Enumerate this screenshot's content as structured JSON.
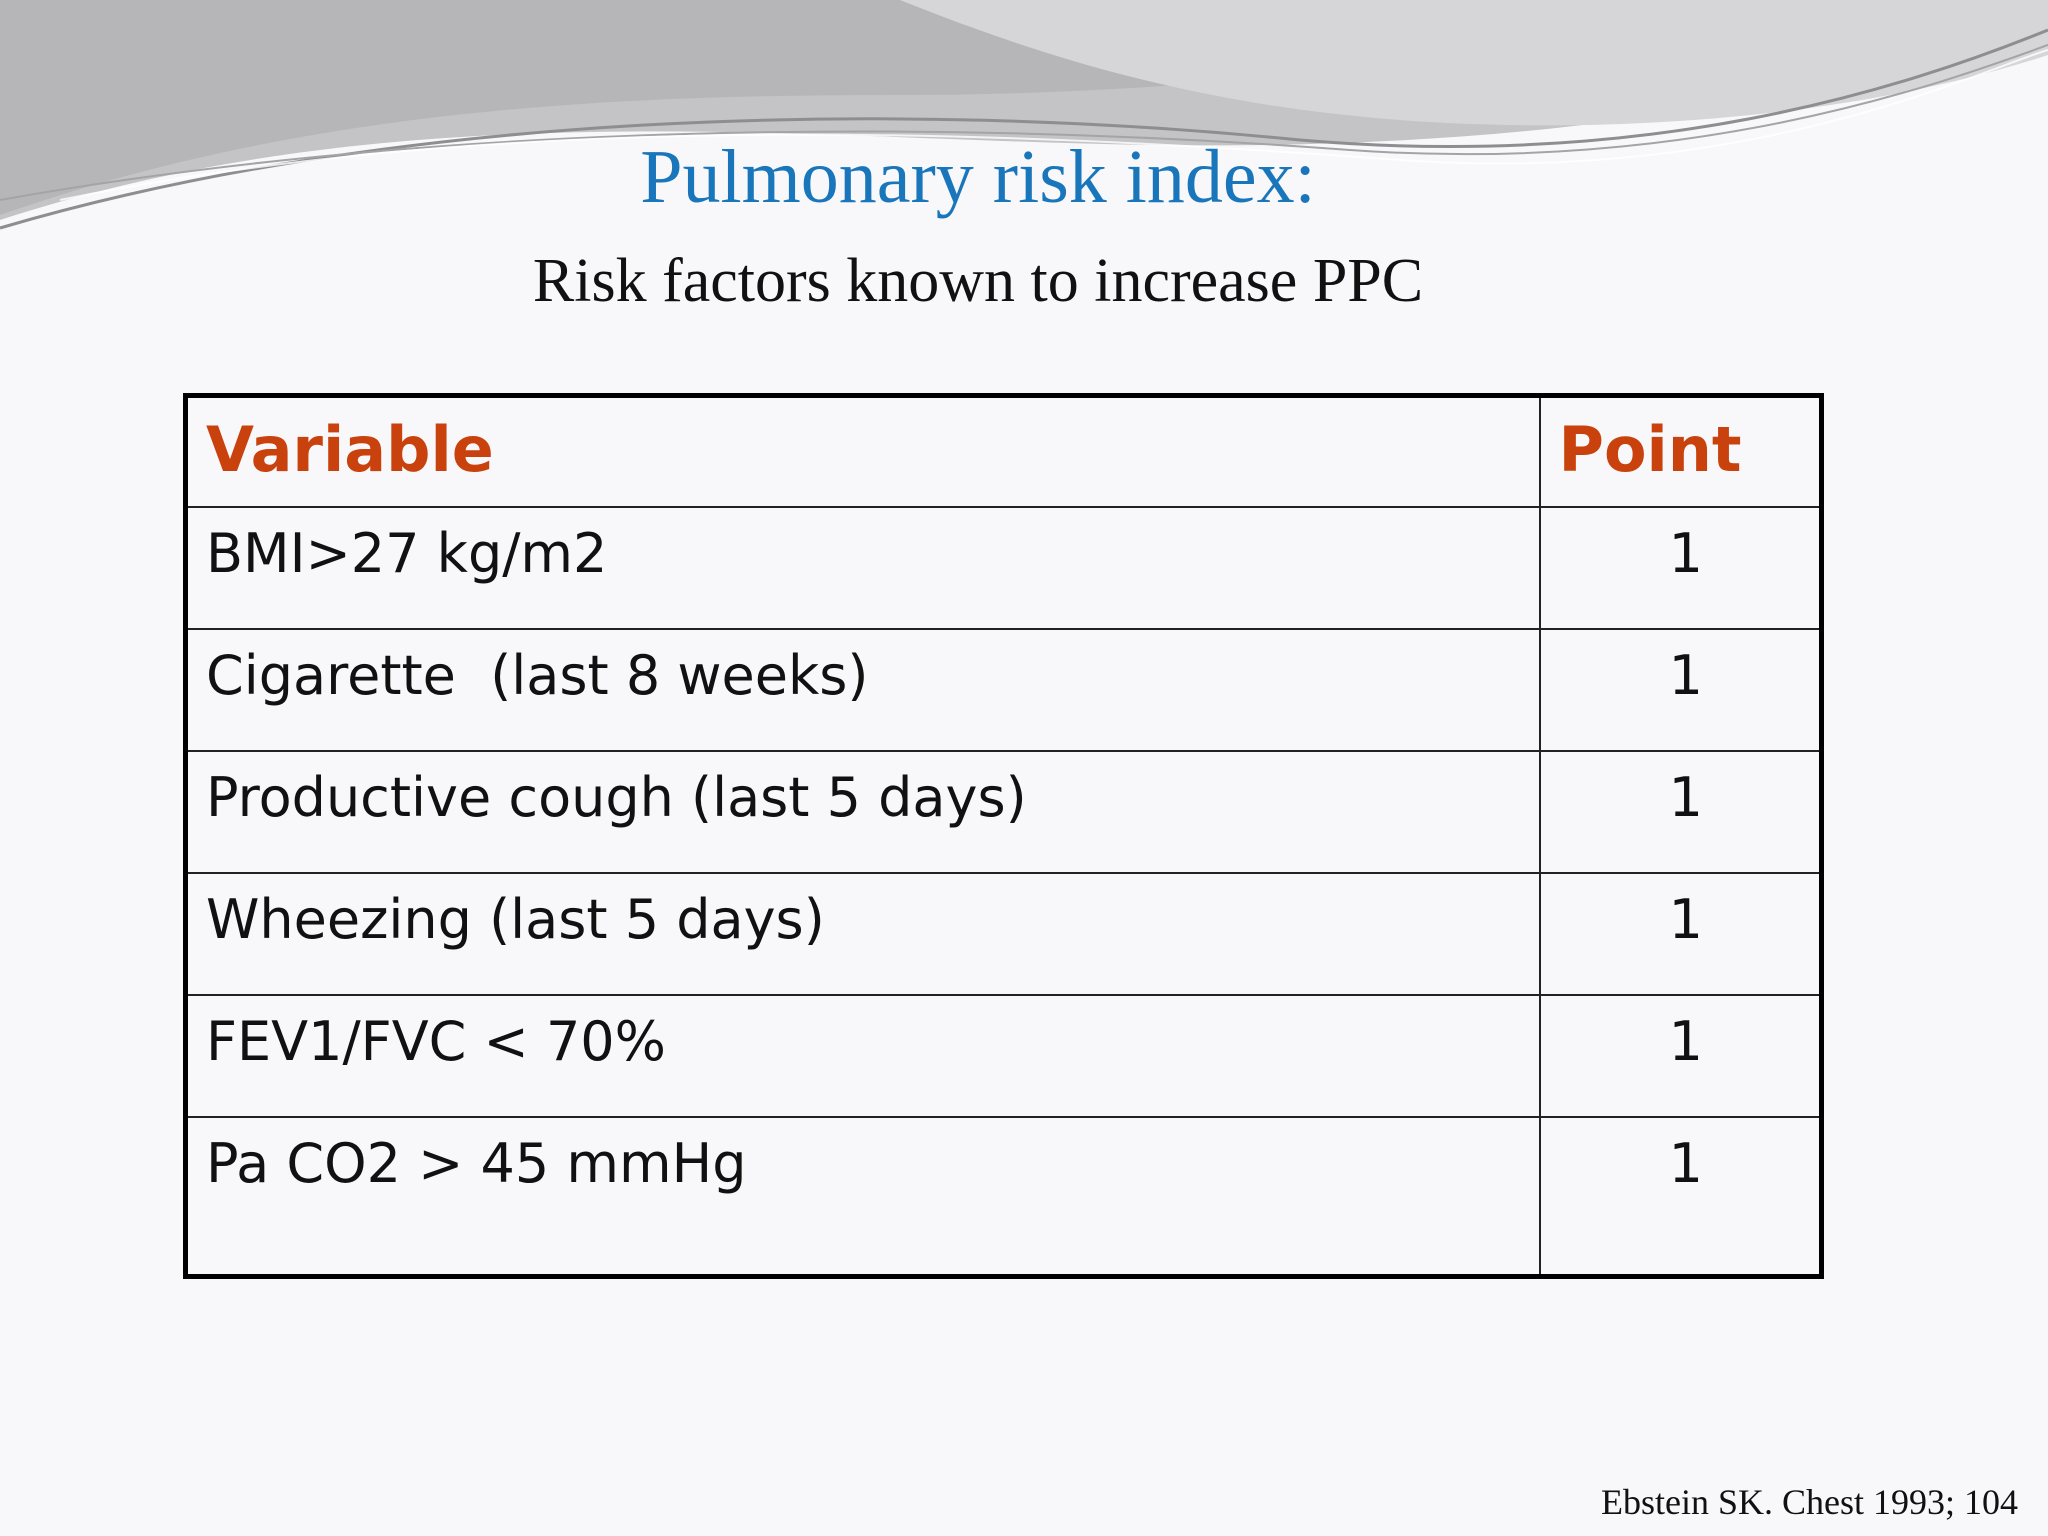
{
  "slide": {
    "title": "Pulmonary risk index:",
    "subtitle": "Risk factors known to increase PPC",
    "citation": "Ebstein SK. Chest 1993; 104"
  },
  "table": {
    "headers": [
      "Variable",
      "Point"
    ],
    "rows": [
      {
        "variable": "BMI>27 kg/m2",
        "point": "1"
      },
      {
        "variable": "Cigarette  (last 8 weeks)",
        "point": "1"
      },
      {
        "variable": "Productive cough (last 5 days)",
        "point": "1"
      },
      {
        "variable": "Wheezing (last 5 days)",
        "point": "1"
      },
      {
        "variable": "FEV1/FVC < 70%",
        "point": "1"
      },
      {
        "variable": "Pa CO2 > 45 mmHg",
        "point": "1"
      }
    ]
  },
  "colors": {
    "title": "#1a76bb",
    "header": "#c9420d",
    "background": "#f8f8fa"
  }
}
